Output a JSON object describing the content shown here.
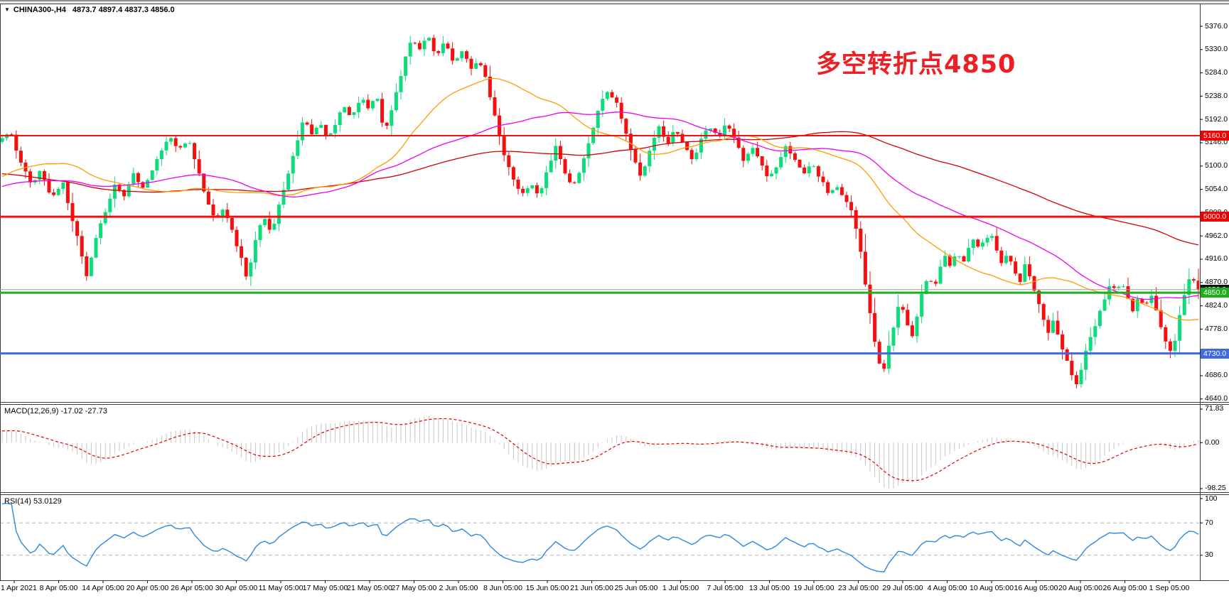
{
  "header": {
    "dropdown_icon": "▼",
    "symbol_timeframe": "CHINA300-,H4",
    "ohlc": "4873.7 4897.4 4837.3 4856.0"
  },
  "indicators": {
    "macd_label": "MACD(12,26,9) -17.02 -27.73",
    "rsi_label": "RSI(14) 53.0129"
  },
  "chart_data": {
    "type": "candlestick",
    "symbol": "CHINA300-",
    "timeframe": "H4",
    "ohlc_current": {
      "open": 4873.7,
      "high": 4897.4,
      "low": 4837.3,
      "close": 4856.0
    },
    "y_range": [
      4640,
      5376
    ],
    "y_ticks": [
      "5376.0",
      "5330.0",
      "5284.0",
      "5238.0",
      "5192.0",
      "5146.0",
      "5100.0",
      "5054.0",
      "5008.0",
      "4962.0",
      "4916.0",
      "4870.0",
      "4824.0",
      "4778.0",
      "4732.0",
      "4686.0",
      "4640.0"
    ],
    "x_labels": [
      "1 Apr 2021",
      "8 Apr 05:00",
      "14 Apr 05:00",
      "20 Apr 05:00",
      "26 Apr 05:00",
      "30 Apr 05:00",
      "11 May 05:00",
      "17 May 05:00",
      "21 May 05:00",
      "27 May 05:00",
      "2 Jun 05:00",
      "8 Jun 05:00",
      "15 Jun 05:00",
      "21 Jun 05:00",
      "25 Jun 05:00",
      "1 Jul 05:00",
      "7 Jul 05:00",
      "13 Jul 05:00",
      "19 Jul 05:00",
      "23 Jul 05:00",
      "29 Jul 05:00",
      "4 Aug 05:00",
      "10 Aug 05:00",
      "16 Aug 05:00",
      "20 Aug 05:00",
      "26 Aug 05:00",
      "1 Sep 05:00"
    ],
    "annotation": {
      "text": "多空转折点4850",
      "color": "#ed1f24"
    },
    "colors": {
      "bull": "#0ddc7c",
      "bear": "#f50f0f",
      "background": "#ffffff"
    },
    "horizontal_levels": [
      {
        "price": 5160.0,
        "label": "5160.0",
        "color": "#f50f0f",
        "badge": "#ef0000",
        "thickness": 2
      },
      {
        "price": 5000.0,
        "label": "5000.0",
        "color": "#f50f0f",
        "badge": "#ef0000",
        "thickness": 3
      },
      {
        "price": 4856.0,
        "label": "4856.0",
        "color": "#9c9c9c",
        "badge": "#111111",
        "thickness": 1
      },
      {
        "price": 4850.0,
        "label": "4850.0",
        "color": "#1cae1c",
        "badge": "#1cae1c",
        "thickness": 3
      },
      {
        "price": 4730.0,
        "label": "4730.0",
        "color": "#4169e1",
        "badge": "#4169e1",
        "thickness": 3
      }
    ],
    "moving_averages": [
      {
        "name": "ma-slow",
        "period": 120,
        "color": "#d40000"
      },
      {
        "name": "ma-fast",
        "period": 34,
        "color": "#ff9c00"
      },
      {
        "name": "ma-mid",
        "period": 60,
        "color": "#f000f0"
      }
    ],
    "macd": {
      "params": "(12,26,9)",
      "main": -17.02,
      "signal": -27.73,
      "axis": [
        "71.83",
        "0.00",
        "-98.25"
      ],
      "histogram_color": "#c6c6c6",
      "signal_color": "#e00000"
    },
    "rsi": {
      "params": "(14)",
      "value": 53.0129,
      "axis": [
        "100",
        "70",
        "30"
      ],
      "levels": [
        70,
        30
      ],
      "line_color": "#2b88e0"
    },
    "prehistory_anchors": [
      [
        -860,
        5310
      ],
      [
        -620,
        5140
      ],
      [
        -450,
        4985
      ],
      [
        -310,
        5055
      ],
      [
        -190,
        5000
      ],
      [
        -95,
        5095
      ],
      [
        -40,
        5135
      ],
      [
        -5,
        5150
      ]
    ],
    "price_anchors": [
      [
        0,
        5150
      ],
      [
        15,
        5165
      ],
      [
        30,
        5105
      ],
      [
        45,
        5060
      ],
      [
        58,
        5095
      ],
      [
        72,
        5035
      ],
      [
        88,
        5070
      ],
      [
        100,
        5005
      ],
      [
        112,
        4940
      ],
      [
        122,
        4880
      ],
      [
        135,
        4955
      ],
      [
        150,
        5020
      ],
      [
        162,
        5065
      ],
      [
        175,
        5040
      ],
      [
        188,
        5090
      ],
      [
        200,
        5055
      ],
      [
        212,
        5085
      ],
      [
        225,
        5125
      ],
      [
        238,
        5160
      ],
      [
        252,
        5130
      ],
      [
        265,
        5155
      ],
      [
        278,
        5095
      ],
      [
        290,
        5035
      ],
      [
        302,
        4995
      ],
      [
        315,
        5020
      ],
      [
        328,
        4965
      ],
      [
        340,
        4915
      ],
      [
        348,
        4875
      ],
      [
        358,
        4945
      ],
      [
        370,
        5000
      ],
      [
        382,
        4970
      ],
      [
        394,
        5030
      ],
      [
        406,
        5090
      ],
      [
        418,
        5150
      ],
      [
        428,
        5195
      ],
      [
        438,
        5160
      ],
      [
        450,
        5185
      ],
      [
        460,
        5155
      ],
      [
        472,
        5180
      ],
      [
        482,
        5225
      ],
      [
        495,
        5195
      ],
      [
        508,
        5240
      ],
      [
        518,
        5210
      ],
      [
        530,
        5240
      ],
      [
        540,
        5165
      ],
      [
        552,
        5215
      ],
      [
        565,
        5285
      ],
      [
        578,
        5350
      ],
      [
        590,
        5330
      ],
      [
        602,
        5355
      ],
      [
        614,
        5315
      ],
      [
        626,
        5350
      ],
      [
        638,
        5305
      ],
      [
        650,
        5330
      ],
      [
        662,
        5290
      ],
      [
        674,
        5310
      ],
      [
        686,
        5260
      ],
      [
        698,
        5185
      ],
      [
        710,
        5120
      ],
      [
        722,
        5075
      ],
      [
        734,
        5045
      ],
      [
        746,
        5065
      ],
      [
        758,
        5040
      ],
      [
        770,
        5090
      ],
      [
        782,
        5140
      ],
      [
        794,
        5090
      ],
      [
        806,
        5055
      ],
      [
        818,
        5100
      ],
      [
        830,
        5155
      ],
      [
        842,
        5215
      ],
      [
        854,
        5250
      ],
      [
        866,
        5230
      ],
      [
        878,
        5180
      ],
      [
        890,
        5120
      ],
      [
        902,
        5075
      ],
      [
        914,
        5130
      ],
      [
        926,
        5180
      ],
      [
        938,
        5140
      ],
      [
        950,
        5175
      ],
      [
        962,
        5145
      ],
      [
        974,
        5110
      ],
      [
        986,
        5150
      ],
      [
        998,
        5180
      ],
      [
        1010,
        5155
      ],
      [
        1022,
        5185
      ],
      [
        1034,
        5150
      ],
      [
        1046,
        5110
      ],
      [
        1058,
        5140
      ],
      [
        1070,
        5105
      ],
      [
        1082,
        5075
      ],
      [
        1094,
        5105
      ],
      [
        1106,
        5140
      ],
      [
        1118,
        5110
      ],
      [
        1130,
        5085
      ],
      [
        1142,
        5110
      ],
      [
        1154,
        5075
      ],
      [
        1166,
        5045
      ],
      [
        1178,
        5060
      ],
      [
        1190,
        5030
      ],
      [
        1200,
        5005
      ],
      [
        1210,
        4935
      ],
      [
        1218,
        4860
      ],
      [
        1226,
        4790
      ],
      [
        1234,
        4725
      ],
      [
        1242,
        4690
      ],
      [
        1250,
        4740
      ],
      [
        1258,
        4790
      ],
      [
        1266,
        4835
      ],
      [
        1274,
        4800
      ],
      [
        1282,
        4755
      ],
      [
        1290,
        4805
      ],
      [
        1298,
        4855
      ],
      [
        1306,
        4885
      ],
      [
        1314,
        4860
      ],
      [
        1322,
        4895
      ],
      [
        1330,
        4925
      ],
      [
        1338,
        4900
      ],
      [
        1346,
        4935
      ],
      [
        1354,
        4905
      ],
      [
        1362,
        4940
      ],
      [
        1370,
        4960
      ],
      [
        1378,
        4935
      ],
      [
        1386,
        4955
      ],
      [
        1394,
        4965
      ],
      [
        1402,
        4935
      ],
      [
        1410,
        4905
      ],
      [
        1418,
        4930
      ],
      [
        1426,
        4900
      ],
      [
        1434,
        4865
      ],
      [
        1442,
        4905
      ],
      [
        1450,
        4875
      ],
      [
        1458,
        4840
      ],
      [
        1466,
        4805
      ],
      [
        1474,
        4770
      ],
      [
        1482,
        4800
      ],
      [
        1490,
        4760
      ],
      [
        1498,
        4725
      ],
      [
        1506,
        4695
      ],
      [
        1514,
        4670
      ],
      [
        1522,
        4705
      ],
      [
        1530,
        4745
      ],
      [
        1538,
        4775
      ],
      [
        1546,
        4810
      ],
      [
        1554,
        4840
      ],
      [
        1562,
        4870
      ],
      [
        1570,
        4850
      ],
      [
        1578,
        4875
      ],
      [
        1586,
        4845
      ],
      [
        1594,
        4815
      ],
      [
        1602,
        4845
      ],
      [
        1610,
        4820
      ],
      [
        1618,
        4850
      ],
      [
        1626,
        4815
      ],
      [
        1634,
        4780
      ],
      [
        1642,
        4745
      ],
      [
        1650,
        4732
      ],
      [
        1658,
        4800
      ],
      [
        1666,
        4845
      ],
      [
        1674,
        4880
      ],
      [
        1686,
        4856
      ]
    ]
  }
}
